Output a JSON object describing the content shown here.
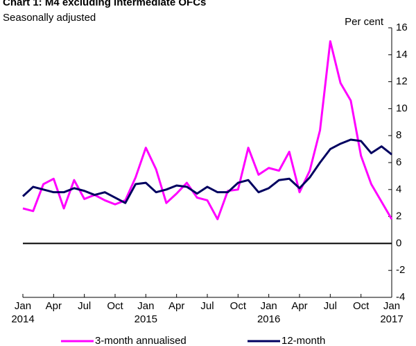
{
  "chart_data": {
    "type": "line",
    "title": "Chart 1: M4 excluding intermediate OFCs",
    "subtitle": "Seasonally adjusted",
    "y_axis_label": "Per cent",
    "categories": [
      "Jan",
      null,
      null,
      "Apr",
      null,
      null,
      "Jul",
      null,
      null,
      "Oct",
      null,
      null,
      "Jan",
      null,
      null,
      "Apr",
      null,
      null,
      "Jul",
      null,
      null,
      "Oct",
      null,
      null,
      "Jan",
      null,
      null,
      "Apr",
      null,
      null,
      "Jul",
      null,
      null,
      "Oct",
      null,
      null,
      "Jan"
    ],
    "years": [
      "2014",
      "2015",
      "2016",
      "2017"
    ],
    "series": [
      {
        "name": "3-month annualised",
        "color": "#ff00ff",
        "values": [
          2.6,
          2.4,
          4.4,
          4.8,
          2.6,
          4.7,
          3.3,
          3.6,
          3.2,
          2.9,
          3.2,
          4.9,
          7.1,
          5.5,
          3.0,
          3.7,
          4.5,
          3.4,
          3.2,
          1.8,
          3.9,
          4.0,
          7.1,
          5.1,
          5.6,
          5.4,
          6.8,
          3.8,
          5.4,
          8.4,
          15.0,
          11.9,
          10.6,
          6.5,
          4.4,
          3.1,
          1.8
        ]
      },
      {
        "name": "12-month",
        "color": "#000060",
        "values": [
          3.5,
          4.2,
          4.0,
          3.8,
          3.8,
          4.1,
          3.9,
          3.6,
          3.8,
          3.4,
          3.0,
          4.4,
          4.5,
          3.8,
          4.0,
          4.3,
          4.2,
          3.7,
          4.2,
          3.8,
          3.8,
          4.5,
          4.7,
          3.8,
          4.1,
          4.7,
          4.8,
          4.1,
          4.9,
          6.0,
          7.0,
          7.4,
          7.7,
          7.6,
          6.7,
          7.2,
          6.6
        ]
      }
    ],
    "ylim": [
      -4,
      16
    ],
    "yticks": [
      -4,
      -2,
      0,
      2,
      4,
      6,
      8,
      10,
      12,
      14,
      16
    ],
    "y_axis_side": "right",
    "zero_line": true,
    "legend": "bottom"
  }
}
